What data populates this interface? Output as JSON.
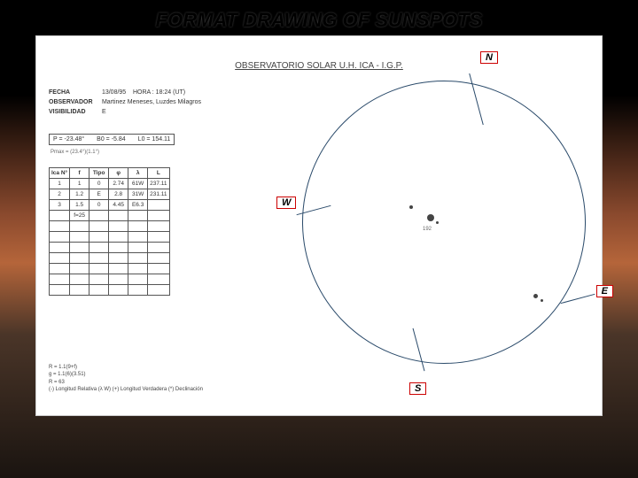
{
  "title": "FORMAT DRAWING  OF SUNSPOTS",
  "doc": {
    "header": "OBSERVATORIO SOLAR U.H. ICA - I.G.P.",
    "meta": {
      "fecha_label": "FECHA",
      "fecha_value": "13/08/95",
      "hora_label": "HORA :",
      "hora_value": "18:24 (UT)",
      "observador_label": "OBSERVADOR",
      "observador_value": "Martinez Meneses, Luzdes Milagros",
      "visibilidad_label": "VISIBILIDAD",
      "visibilidad_value": "E"
    },
    "params": {
      "p": "P = -23.48°",
      "b0": "B0 = -5.84",
      "l0": "L0 = 154.11"
    },
    "small_note": "Pmax = (23.4°)(1.1°)",
    "table": {
      "headers": [
        "Ica N°",
        "f",
        "Tipo",
        "φ",
        "λ",
        "L"
      ],
      "rows": [
        [
          "1",
          "1",
          "0",
          "2.74",
          "61W",
          "237.11"
        ],
        [
          "2",
          "1.2",
          "E",
          "2.8",
          "31W",
          "231.11"
        ],
        [
          "3",
          "1.5",
          "0",
          "4.45",
          "E6.3",
          ""
        ],
        [
          "",
          "f=25",
          "",
          "",
          "",
          ""
        ],
        [
          "",
          "",
          "",
          "",
          "",
          ""
        ],
        [
          "",
          "",
          "",
          "",
          "",
          ""
        ],
        [
          "",
          "",
          "",
          "",
          "",
          ""
        ],
        [
          "",
          "",
          "",
          "",
          "",
          ""
        ],
        [
          "",
          "",
          "",
          "",
          "",
          ""
        ],
        [
          "",
          "",
          "",
          "",
          "",
          ""
        ],
        [
          "",
          "",
          "",
          "",
          "",
          ""
        ]
      ]
    },
    "footer": {
      "r_calc": "R = 1.1(9+f)",
      "g_calc": "g = 1.1(6)(3.51)",
      "r_val": "R = 63",
      "notes": "(-) Longitud Relativa (λ W)\n(+) Longitud Verdadera\n(*) Declinación"
    },
    "compass": {
      "n": "N",
      "s": "S",
      "e": "E",
      "w": "W"
    }
  }
}
